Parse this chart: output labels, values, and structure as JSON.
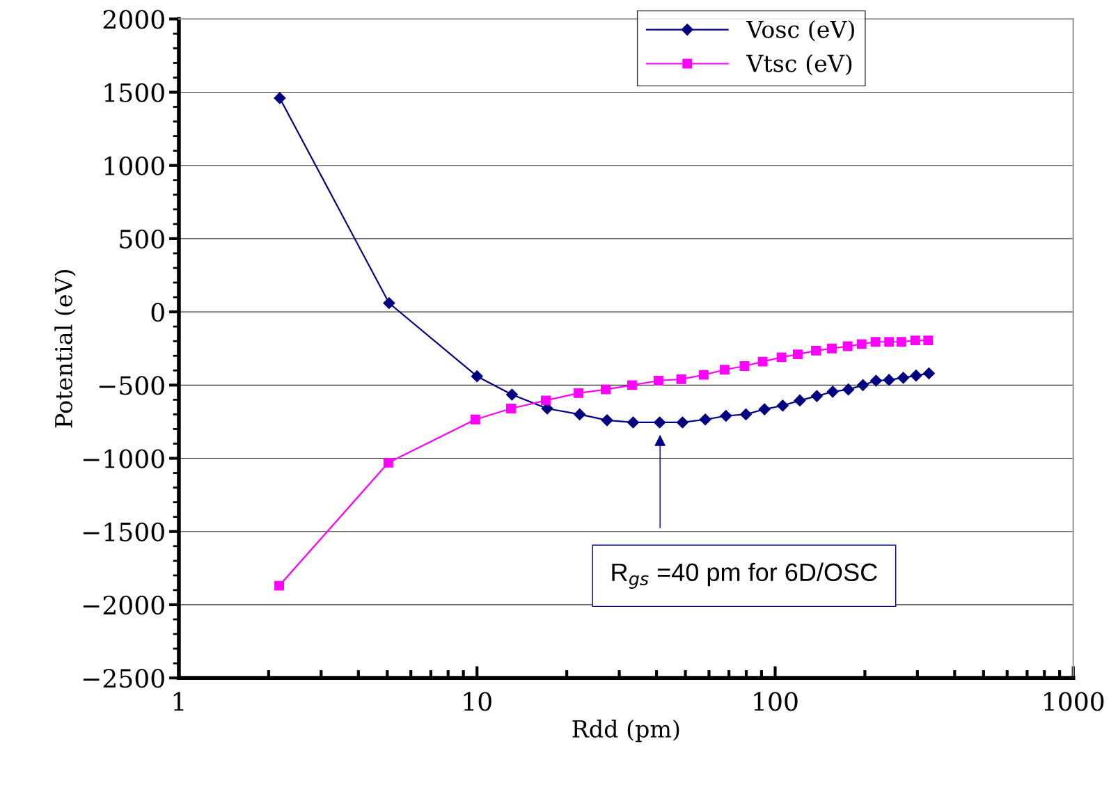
{
  "chart_data": {
    "type": "line",
    "xlabel": "Rdd (pm)",
    "ylabel": "Potential (eV)",
    "log": "x",
    "xlim": [
      1,
      1000
    ],
    "xticks": [
      1,
      10,
      100,
      1000
    ],
    "ylim": [
      -2500,
      2000
    ],
    "yticks": [
      -2500,
      -2000,
      -1500,
      -1000,
      -500,
      0,
      500,
      1000,
      1500,
      2000
    ],
    "grid": "y",
    "legend": "top",
    "series": [
      {
        "name": "Vosc (eV)",
        "color": "#000080",
        "marker": "diamond",
        "x": [
          2.18,
          5.07,
          10,
          13.1,
          17.2,
          22.1,
          27.3,
          33.4,
          41,
          48.9,
          58.3,
          68.4,
          79.8,
          92.1,
          106,
          121,
          138,
          156,
          176,
          197,
          218,
          241,
          269,
          297,
          328
        ],
        "values": [
          1460,
          60,
          -440,
          -565,
          -660,
          -700,
          -740,
          -755,
          -755,
          -755,
          -735,
          -710,
          -700,
          -665,
          -640,
          -605,
          -575,
          -545,
          -530,
          -500,
          -470,
          -465,
          -450,
          -435,
          -420
        ]
      },
      {
        "name": "Vtsc (eV)",
        "color": "#ff00ff",
        "marker": "square",
        "x": [
          2.17,
          5.04,
          9.87,
          13,
          17,
          21.9,
          27,
          33.1,
          40.6,
          48.4,
          57.6,
          67.7,
          78.9,
          90.8,
          105,
          119,
          137,
          155,
          175,
          195,
          217,
          241,
          265,
          295,
          326
        ],
        "values": [
          -1870,
          -1030,
          -735,
          -660,
          -605,
          -555,
          -530,
          -500,
          -470,
          -460,
          -430,
          -395,
          -370,
          -340,
          -310,
          -290,
          -265,
          -250,
          -235,
          -220,
          -205,
          -205,
          -205,
          -195,
          -195
        ]
      }
    ],
    "annotations": [
      "R$_{gs}$ =40 pm for 6D/OSC"
    ]
  }
}
